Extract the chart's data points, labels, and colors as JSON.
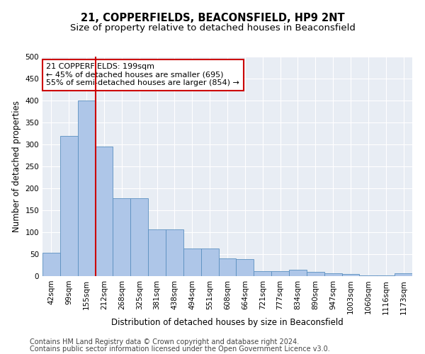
{
  "title": "21, COPPERFIELDS, BEACONSFIELD, HP9 2NT",
  "subtitle": "Size of property relative to detached houses in Beaconsfield",
  "xlabel": "Distribution of detached houses by size in Beaconsfield",
  "ylabel": "Number of detached properties",
  "footnote1": "Contains HM Land Registry data © Crown copyright and database right 2024.",
  "footnote2": "Contains public sector information licensed under the Open Government Licence v3.0.",
  "categories": [
    "42sqm",
    "99sqm",
    "155sqm",
    "212sqm",
    "268sqm",
    "325sqm",
    "381sqm",
    "438sqm",
    "494sqm",
    "551sqm",
    "608sqm",
    "664sqm",
    "721sqm",
    "777sqm",
    "834sqm",
    "890sqm",
    "947sqm",
    "1003sqm",
    "1060sqm",
    "1116sqm",
    "1173sqm"
  ],
  "values": [
    53,
    320,
    400,
    295,
    178,
    178,
    107,
    107,
    63,
    63,
    40,
    38,
    12,
    12,
    14,
    9,
    7,
    5,
    2,
    1,
    6
  ],
  "bar_color": "#aec6e8",
  "bar_edge_color": "#5a8fc0",
  "bg_color": "#e8edf4",
  "grid_color": "#ffffff",
  "vline_color": "#cc0000",
  "vline_x": 2.5,
  "annotation_line1": "21 COPPERFIELDS: 199sqm",
  "annotation_line2": "← 45% of detached houses are smaller (695)",
  "annotation_line3": "55% of semi-detached houses are larger (854) →",
  "annotation_box_color": "#cc0000",
  "ylim": [
    0,
    500
  ],
  "yticks": [
    0,
    50,
    100,
    150,
    200,
    250,
    300,
    350,
    400,
    450,
    500
  ],
  "title_fontsize": 10.5,
  "subtitle_fontsize": 9.5,
  "axis_label_fontsize": 8.5,
  "tick_fontsize": 7.5,
  "annotation_fontsize": 8,
  "footnote_fontsize": 7
}
